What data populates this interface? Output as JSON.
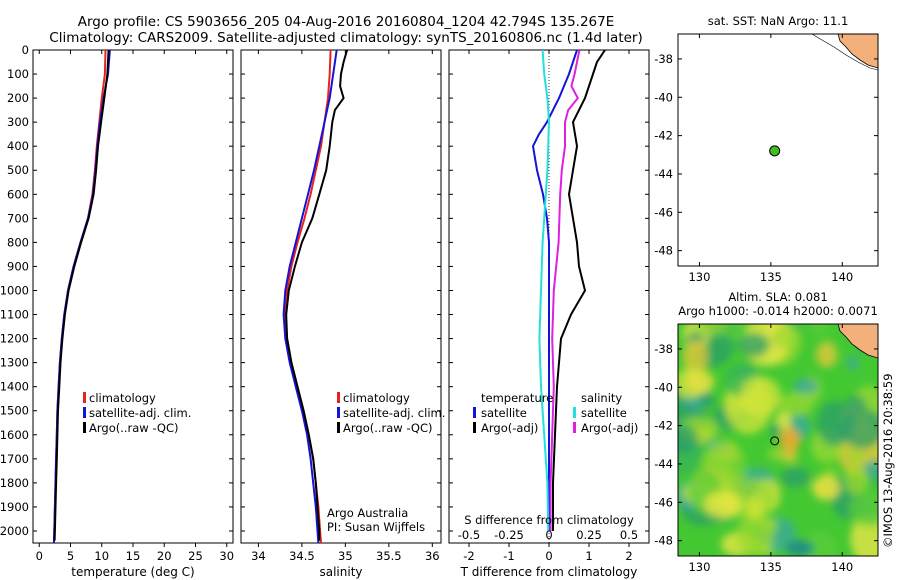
{
  "header": {
    "line1": "Argo profile: CS 5903656_205 04-Aug-2016 20160804_1204 42.794S 135.267E",
    "line2": "Climatology: CARS2009. Satellite-adjusted climatology: synTS_20160806.nc (1.4d later)"
  },
  "credits": {
    "org": "Argo Australia",
    "pi": "PI: Susan Wijffels",
    "imos": "©IMOS 13-Aug-2016 20:38:59"
  },
  "colors": {
    "climatology": "#e8221c",
    "satellite": "#1414d8",
    "argo": "#000000",
    "sat_salinity": "#22e0e0",
    "argo_salinity": "#e020e0",
    "dot": "#40c020",
    "land": "#f4b07a"
  },
  "legend_a": {
    "items": [
      {
        "label": "climatology",
        "color": "#e8221c"
      },
      {
        "label": "satellite-adj. clim.",
        "color": "#1414d8"
      },
      {
        "label": "Argo(..raw -QC)",
        "color": "#000000"
      }
    ]
  },
  "legend_b": {
    "col1_title": "temperature",
    "col2_title": "salinity",
    "col1": [
      {
        "label": "satellite",
        "color": "#1414d8"
      },
      {
        "label": "Argo(-adj)",
        "color": "#000000"
      }
    ],
    "col2": [
      {
        "label": "satellite",
        "color": "#22e0e0"
      },
      {
        "label": "Argo(-adj)",
        "color": "#e020e0"
      }
    ]
  },
  "map_top": {
    "title": "sat. SST: NaN Argo: 11.1",
    "xticks": [
      "130",
      "135",
      "140"
    ],
    "yticks": [
      "-38",
      "-40",
      "-42",
      "-44",
      "-46",
      "-48"
    ]
  },
  "map_bottom": {
    "title1": "Altim. SLA: 0.081",
    "title2": "Argo h1000: -0.014 h2000: 0.0071",
    "xticks": [
      "130",
      "135",
      "140"
    ],
    "yticks": [
      "-38",
      "-40",
      "-42",
      "-44",
      "-46",
      "-48"
    ]
  },
  "chart_data": [
    {
      "type": "line",
      "xlabel": "temperature (deg C)",
      "xlim": [
        -1,
        31
      ],
      "ylim": [
        2050,
        0
      ],
      "xticks": [
        0,
        5,
        10,
        15,
        20,
        25,
        30
      ],
      "yticks": [
        0,
        100,
        200,
        300,
        400,
        500,
        600,
        700,
        800,
        900,
        1000,
        1100,
        1200,
        1300,
        1400,
        1500,
        1600,
        1700,
        1800,
        1900,
        2000
      ],
      "grid": false,
      "legend_position": "lower-center",
      "series": [
        {
          "name": "climatology",
          "color": "#e8221c",
          "depth": [
            0,
            100,
            200,
            300,
            400,
            500,
            600,
            700,
            800,
            900,
            1000,
            1100,
            1200,
            1300,
            1400,
            1500,
            1600,
            1700,
            1800,
            1900,
            2000,
            2050
          ],
          "values": [
            10.6,
            10.5,
            10.0,
            9.6,
            9.2,
            8.9,
            8.5,
            7.8,
            6.6,
            5.5,
            4.6,
            4.0,
            3.6,
            3.3,
            3.1,
            2.9,
            2.8,
            2.7,
            2.6,
            2.5,
            2.4,
            2.35
          ]
        },
        {
          "name": "satellite-adj. clim.",
          "color": "#1414d8",
          "depth": [
            0,
            100,
            200,
            300,
            400,
            500,
            600,
            700,
            800,
            900,
            1000,
            1100,
            1200,
            1300,
            1400,
            1500,
            1600,
            1700,
            1800,
            1900,
            2000,
            2050
          ],
          "values": [
            11.3,
            11.0,
            10.3,
            9.7,
            9.3,
            9.0,
            8.6,
            7.8,
            6.6,
            5.5,
            4.6,
            4.0,
            3.6,
            3.3,
            3.1,
            2.9,
            2.8,
            2.7,
            2.6,
            2.5,
            2.4,
            2.35
          ]
        },
        {
          "name": "Argo(..raw -QC)",
          "color": "#000000",
          "depth": [
            0,
            100,
            200,
            300,
            400,
            500,
            600,
            700,
            800,
            900,
            1000,
            1100,
            1200,
            1300,
            1400,
            1500,
            1600,
            1700,
            1800,
            1900,
            2000,
            2040
          ],
          "values": [
            11.1,
            10.9,
            10.4,
            9.9,
            9.4,
            9.1,
            8.7,
            7.9,
            6.7,
            5.6,
            4.7,
            4.1,
            3.7,
            3.4,
            3.2,
            3.0,
            2.9,
            2.8,
            2.7,
            2.6,
            2.5,
            2.45
          ]
        }
      ]
    },
    {
      "type": "line",
      "xlabel": "salinity",
      "xlim": [
        33.8,
        36.1
      ],
      "ylim": [
        2050,
        0
      ],
      "xticks": [
        34,
        34.5,
        35,
        35.5,
        36
      ],
      "grid": false,
      "legend_position": "lower-center",
      "series": [
        {
          "name": "climatology",
          "color": "#e8221c",
          "depth": [
            0,
            100,
            200,
            300,
            400,
            500,
            600,
            700,
            800,
            900,
            1000,
            1100,
            1200,
            1300,
            1400,
            1500,
            1600,
            1700,
            1800,
            1900,
            2000,
            2050
          ],
          "values": [
            34.83,
            34.82,
            34.8,
            34.76,
            34.72,
            34.66,
            34.6,
            34.53,
            34.45,
            34.38,
            34.33,
            34.31,
            34.33,
            34.38,
            34.45,
            34.52,
            34.58,
            34.63,
            34.66,
            34.69,
            34.71,
            34.72
          ]
        },
        {
          "name": "satellite-adj. clim.",
          "color": "#1414d8",
          "depth": [
            0,
            100,
            200,
            300,
            400,
            500,
            600,
            700,
            800,
            900,
            1000,
            1100,
            1200,
            1300,
            1400,
            1500,
            1600,
            1700,
            1800,
            1900,
            2000,
            2050
          ],
          "values": [
            34.9,
            34.86,
            34.82,
            34.76,
            34.7,
            34.64,
            34.57,
            34.5,
            34.43,
            34.36,
            34.31,
            34.29,
            34.31,
            34.36,
            34.43,
            34.5,
            34.56,
            34.6,
            34.63,
            34.66,
            34.68,
            34.69
          ]
        },
        {
          "name": "Argo(..raw -QC)",
          "color": "#000000",
          "depth": [
            0,
            50,
            100,
            150,
            200,
            250,
            300,
            400,
            500,
            600,
            700,
            800,
            900,
            1000,
            1100,
            1200,
            1300,
            1400,
            1500,
            1600,
            1700,
            1800,
            1900,
            2000,
            2040
          ],
          "values": [
            35.02,
            34.98,
            34.95,
            34.94,
            34.98,
            34.88,
            34.85,
            34.82,
            34.78,
            34.7,
            34.62,
            34.5,
            34.42,
            34.35,
            34.32,
            34.33,
            34.38,
            34.45,
            34.52,
            34.58,
            34.63,
            34.66,
            34.68,
            34.7,
            34.7
          ]
        }
      ]
    },
    {
      "type": "line",
      "xlabel": "T difference from climatology",
      "xlabel_top": "S difference from climatology",
      "xlim": [
        -2.5,
        2.5
      ],
      "ylim": [
        2050,
        0
      ],
      "xticks": [
        -2,
        -1,
        0,
        1,
        2
      ],
      "xticks_secondary": [
        -0.5,
        -0.25,
        0,
        0.25,
        0.5
      ],
      "grid": false,
      "legend_position": "lower-center",
      "series": [
        {
          "name": "satellite (temperature)",
          "color": "#1414d8",
          "depth": [
            0,
            100,
            200,
            250,
            300,
            350,
            400,
            500,
            600,
            700,
            800,
            900,
            1000,
            1200,
            1400,
            1600,
            1800,
            2000
          ],
          "values": [
            0.7,
            0.5,
            0.25,
            0.1,
            -0.05,
            -0.25,
            -0.4,
            -0.3,
            -0.15,
            -0.05,
            0.0,
            0.0,
            0.0,
            0.0,
            0.0,
            0.0,
            0.0,
            0.0
          ]
        },
        {
          "name": "Argo(-adj) (temperature)",
          "color": "#000000",
          "depth": [
            0,
            50,
            100,
            200,
            300,
            400,
            500,
            600,
            700,
            800,
            900,
            1000,
            1100,
            1200,
            1400,
            1600,
            1800,
            2000
          ],
          "values": [
            1.4,
            1.2,
            1.1,
            0.9,
            0.6,
            0.7,
            0.6,
            0.5,
            0.6,
            0.7,
            0.75,
            0.9,
            0.55,
            0.3,
            0.2,
            0.15,
            0.1,
            0.1
          ]
        },
        {
          "name": "satellite (salinity)",
          "color": "#22e0e0",
          "depth": [
            0,
            100,
            200,
            300,
            400,
            500,
            600,
            800,
            1000,
            1200,
            1400,
            1600,
            1800,
            2000
          ],
          "values": [
            -0.04,
            -0.03,
            -0.01,
            0.0,
            -0.005,
            -0.01,
            -0.02,
            -0.04,
            -0.05,
            -0.06,
            -0.05,
            -0.03,
            -0.01,
            -0.005
          ]
        },
        {
          "name": "Argo(-adj) (salinity)",
          "color": "#e020e0",
          "depth": [
            0,
            100,
            150,
            200,
            250,
            300,
            400,
            500,
            600,
            800,
            1000,
            1200,
            1400,
            1600,
            1800,
            2000
          ],
          "values": [
            0.19,
            0.16,
            0.14,
            0.18,
            0.12,
            0.1,
            0.1,
            0.08,
            0.07,
            0.06,
            0.03,
            0.02,
            0.03,
            0.02,
            0.01,
            0.01
          ]
        }
      ]
    },
    {
      "type": "scatter",
      "xlim": [
        128.5,
        142.5
      ],
      "ylim": [
        -48.8,
        -36.7
      ],
      "xticks": [
        130,
        135,
        140
      ],
      "yticks": [
        -38,
        -40,
        -42,
        -44,
        -46,
        -48
      ],
      "points": [
        {
          "lon": 135.267,
          "lat": -42.794
        }
      ]
    },
    {
      "type": "heatmap",
      "xlim": [
        128.5,
        142.5
      ],
      "ylim": [
        -48.8,
        -36.7
      ],
      "xticks": [
        130,
        135,
        140
      ],
      "yticks": [
        -38,
        -40,
        -42,
        -44,
        -46,
        -48
      ],
      "points": [
        {
          "lon": 135.267,
          "lat": -42.794
        }
      ]
    }
  ]
}
